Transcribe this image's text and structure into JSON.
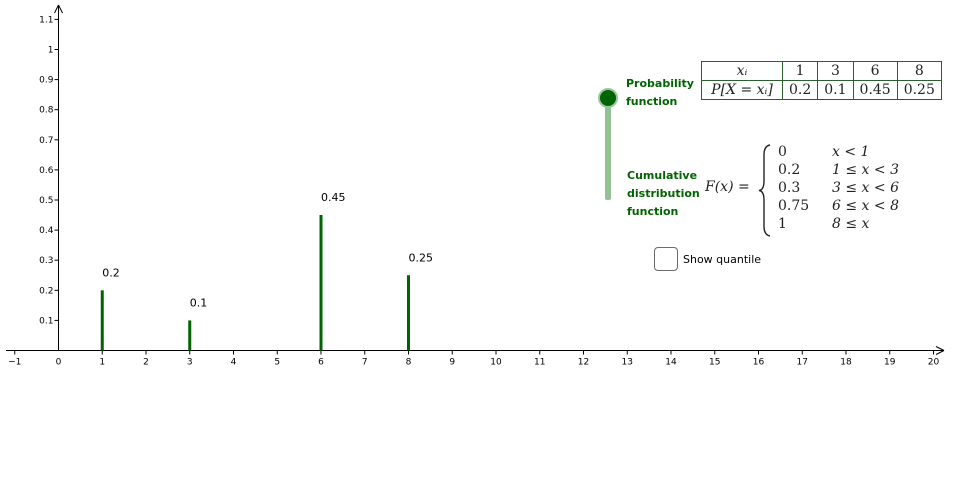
{
  "chart_data": {
    "type": "bar",
    "x": [
      1,
      3,
      6,
      8
    ],
    "values": [
      0.2,
      0.1,
      0.45,
      0.25
    ],
    "data_labels": [
      "0.2",
      "0.1",
      "0.45",
      "0.25"
    ],
    "xlim": [
      -1,
      20
    ],
    "ylim": [
      0,
      1.1
    ],
    "x_ticks": [
      "−1",
      "0",
      "1",
      "2",
      "3",
      "4",
      "5",
      "6",
      "7",
      "8",
      "9",
      "10",
      "11",
      "12",
      "13",
      "14",
      "15",
      "16",
      "17",
      "18",
      "19",
      "20"
    ],
    "y_ticks": [
      "0.1",
      "0.2",
      "0.3",
      "0.4",
      "0.5",
      "0.6",
      "0.7",
      "0.8",
      "0.9",
      "1",
      "1.1"
    ],
    "grid": false,
    "bar_color": "#006400"
  },
  "panel": {
    "probability_label": "Probability function",
    "cdf_label": "Cumulative distribution function",
    "slider_value": "Probability function",
    "table": {
      "row1_header": "xᵢ",
      "row2_header": "P[X = xᵢ]",
      "x": [
        "1",
        "3",
        "6",
        "8"
      ],
      "p": [
        "0.2",
        "0.1",
        "0.45",
        "0.25"
      ]
    },
    "cdf": {
      "lhs": "F(x) =",
      "cases": [
        {
          "value": "0",
          "cond": "x < 1"
        },
        {
          "value": "0.2",
          "cond": "1 ≤ x < 3"
        },
        {
          "value": "0.3",
          "cond": "3 ≤ x < 6"
        },
        {
          "value": "0.75",
          "cond": "6 ≤ x < 8"
        },
        {
          "value": "1",
          "cond": "8 ≤ x"
        }
      ]
    },
    "show_quantile_label": "Show quantile",
    "show_quantile_checked": false,
    "accent_color": "#006400",
    "slider_track_color": "#93c193"
  }
}
